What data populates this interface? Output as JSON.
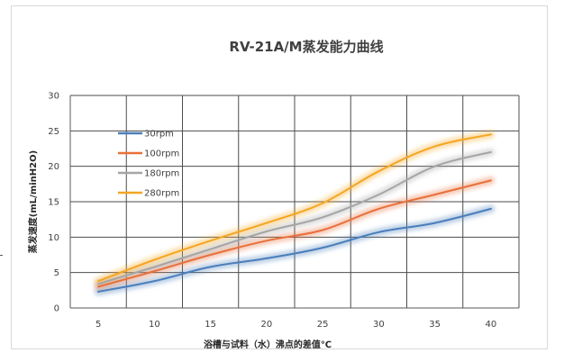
{
  "chart_data": {
    "type": "line",
    "title": "RV-21A/M蒸发能力曲线",
    "xlabel": "浴槽与试料（水）沸点的差值℃",
    "ylabel": "蒸发速度(mL/minH2O)",
    "x": [
      5,
      10,
      15,
      20,
      25,
      30,
      35,
      40
    ],
    "xlim": [
      2.5,
      42.5
    ],
    "ylim": [
      0,
      30
    ],
    "xticks": [
      "5",
      "10",
      "15",
      "20",
      "25",
      "30",
      "35",
      "40"
    ],
    "yticks": [
      "0",
      "5",
      "10",
      "15",
      "20",
      "25",
      "30"
    ],
    "grid": true,
    "legend_position": "top-left",
    "series": [
      {
        "name": "30rpm",
        "color": "#4a7ebb",
        "values": [
          2.3,
          3.8,
          5.8,
          7.0,
          8.5,
          10.7,
          12.0,
          14.0
        ]
      },
      {
        "name": "100rpm",
        "color": "#e8703a",
        "values": [
          3.0,
          5.2,
          7.5,
          9.5,
          11.0,
          14.0,
          16.0,
          18.0
        ]
      },
      {
        "name": "180rpm",
        "color": "#a5a5a5",
        "values": [
          3.4,
          5.8,
          8.3,
          10.8,
          12.8,
          16.0,
          20.0,
          22.0
        ]
      },
      {
        "name": "280rpm",
        "color": "#f5a623",
        "values": [
          3.8,
          6.8,
          9.5,
          12.0,
          14.8,
          19.3,
          22.8,
          24.5
        ]
      }
    ]
  }
}
